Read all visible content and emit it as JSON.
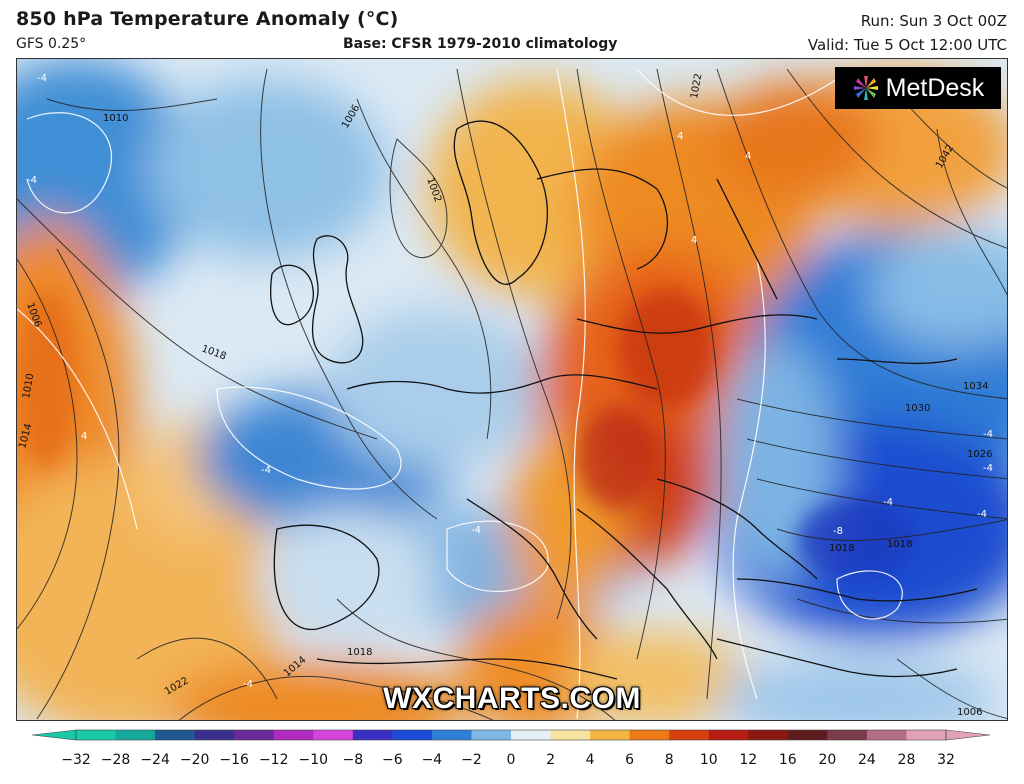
{
  "header": {
    "title": "850 hPa Temperature Anomaly (°C)",
    "model": "GFS 0.25°",
    "base": "Base: CFSR 1979-2010 climatology",
    "run": "Run: Sun 3 Oct 00Z",
    "valid": "Valid: Tue 5 Oct 12:00 UTC"
  },
  "branding": {
    "logo_text": "MetDesk",
    "watermark": "WXCHARTS.COM"
  },
  "colorbar": {
    "ticks": [
      "−32",
      "−28",
      "−24",
      "−20",
      "−16",
      "−12",
      "−10",
      "−8",
      "−6",
      "−4",
      "−2",
      "0",
      "2",
      "4",
      "6",
      "8",
      "10",
      "12",
      "16",
      "20",
      "24",
      "28",
      "32"
    ],
    "colors": [
      "#19c9a5",
      "#14a89a",
      "#1e5a8f",
      "#3a2f8c",
      "#6b2a9c",
      "#b02bbf",
      "#d645d9",
      "#3a2fc4",
      "#1b4bd6",
      "#2f7fd8",
      "#7fb8e6",
      "#e6f0f7",
      "#f7e3a0",
      "#f5b444",
      "#ee7a16",
      "#d8400f",
      "#b81d14",
      "#8a1810",
      "#5e1c1e",
      "#7a3b4a",
      "#b46e86",
      "#e2a2b6"
    ]
  },
  "isobars": [
    "1010",
    "1006",
    "1002",
    "1022",
    "1042",
    "1018",
    "1006",
    "1010",
    "1014",
    "1034",
    "1030",
    "1026",
    "1018",
    "1018",
    "1018",
    "1022",
    "1014",
    "1006"
  ],
  "anomaly_labels": [
    "-4",
    "-4",
    "-4",
    "4",
    "4",
    "-4",
    "4",
    "-4",
    "-4",
    "-4",
    "-8",
    "-4",
    "-4",
    "4"
  ]
}
